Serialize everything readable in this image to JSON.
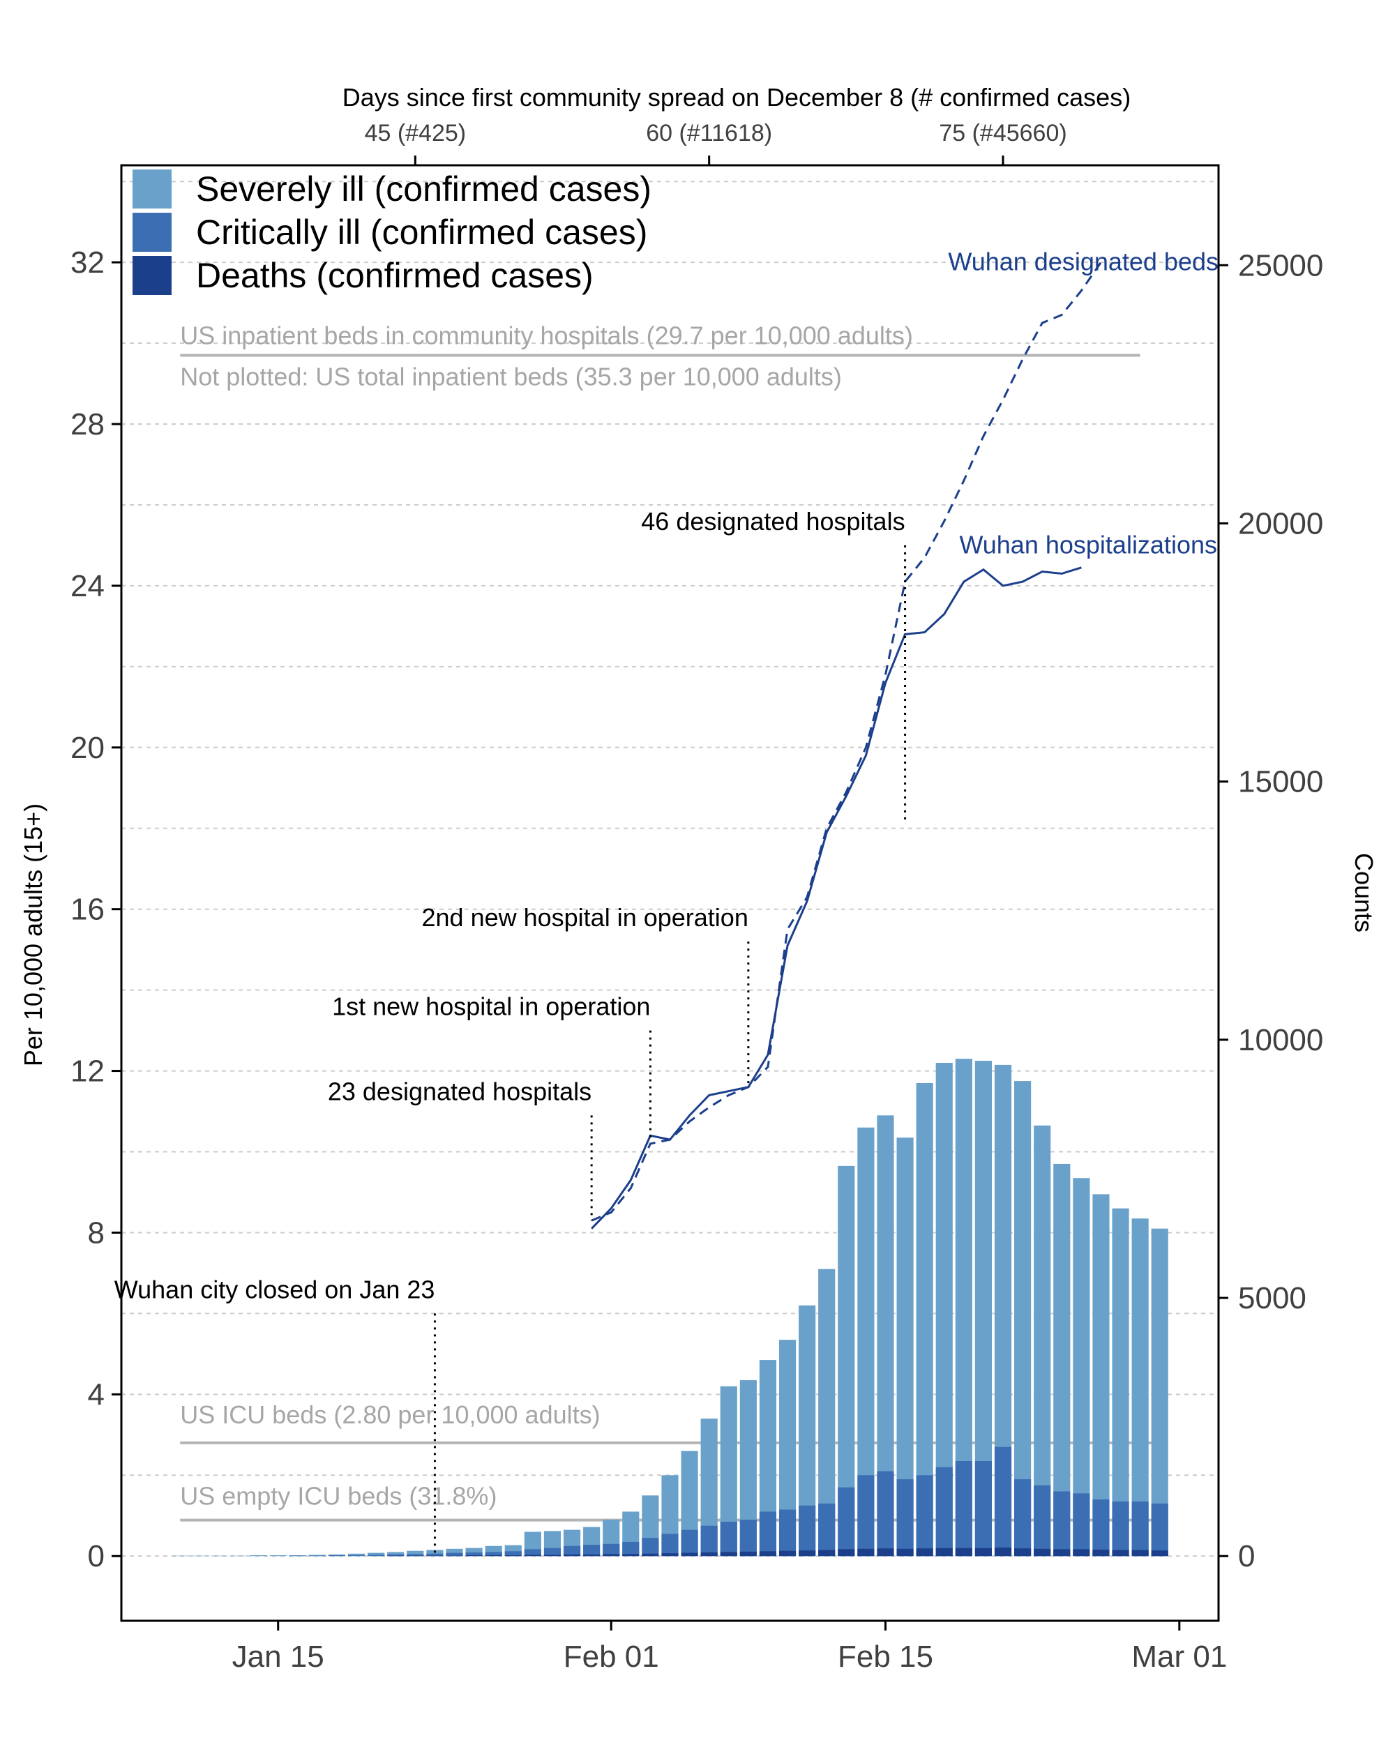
{
  "chart_data": {
    "type": "bar+line",
    "top_axis": {
      "title": "Days since first community spread on December 8 (# confirmed cases)",
      "ticks": [
        {
          "x": "Jan 22",
          "label": "45 (#425)"
        },
        {
          "x": "Feb 06",
          "label": "60 (#11618)"
        },
        {
          "x": "Feb 21",
          "label": "75 (#45660)"
        }
      ]
    },
    "x_axis": {
      "ticks": [
        {
          "x": "Jan 15",
          "label": "Jan 15"
        },
        {
          "x": "Feb 01",
          "label": "Feb 01"
        },
        {
          "x": "Feb 15",
          "label": "Feb 15"
        },
        {
          "x": "Mar 01",
          "label": "Mar 01"
        }
      ],
      "range": [
        "Jan 07",
        "Mar 03"
      ]
    },
    "y_left": {
      "title": "Per 10,000 adults (15+)",
      "ticks": [
        0,
        4,
        8,
        12,
        16,
        20,
        24,
        28,
        32
      ],
      "labels": [
        "0",
        "4",
        "8",
        "12",
        "16",
        "20",
        "24",
        "28",
        "32"
      ],
      "range": [
        -1.6,
        34.4
      ]
    },
    "y_right": {
      "title": "Counts",
      "ticks": [
        0,
        5000,
        10000,
        15000,
        20000,
        25000
      ],
      "labels": [
        "0",
        "5000",
        "10000",
        "15000",
        "20000",
        "25000"
      ],
      "counts_per_unit": 783
    },
    "legend": [
      {
        "label": "Severely ill (confirmed cases)",
        "color": "#6aa1cb"
      },
      {
        "label": "Critically ill (confirmed cases)",
        "color": "#3c6eb4"
      },
      {
        "label": "Deaths (confirmed cases)",
        "color": "#1c3f8c"
      }
    ],
    "bars": {
      "dates": [
        "Jan 10",
        "Jan 11",
        "Jan 12",
        "Jan 13",
        "Jan 14",
        "Jan 15",
        "Jan 16",
        "Jan 17",
        "Jan 18",
        "Jan 19",
        "Jan 20",
        "Jan 21",
        "Jan 22",
        "Jan 23",
        "Jan 24",
        "Jan 25",
        "Jan 26",
        "Jan 27",
        "Jan 28",
        "Jan 29",
        "Jan 30",
        "Jan 31",
        "Feb 01",
        "Feb 02",
        "Feb 03",
        "Feb 04",
        "Feb 05",
        "Feb 06",
        "Feb 07",
        "Feb 08",
        "Feb 09",
        "Feb 10",
        "Feb 11",
        "Feb 12",
        "Feb 13",
        "Feb 14",
        "Feb 15",
        "Feb 16",
        "Feb 17",
        "Feb 18",
        "Feb 19",
        "Feb 20",
        "Feb 21",
        "Feb 22",
        "Feb 23",
        "Feb 24",
        "Feb 25",
        "Feb 26",
        "Feb 27",
        "Feb 28",
        "Feb 29"
      ],
      "severe": [
        0.01,
        0.01,
        0.01,
        0.01,
        0.02,
        0.02,
        0.02,
        0.03,
        0.04,
        0.06,
        0.08,
        0.1,
        0.13,
        0.15,
        0.18,
        0.2,
        0.25,
        0.27,
        0.6,
        0.62,
        0.65,
        0.72,
        0.9,
        1.1,
        1.5,
        2.0,
        2.6,
        3.4,
        4.2,
        4.35,
        4.85,
        5.35,
        6.2,
        7.1,
        9.65,
        10.6,
        10.9,
        10.35,
        11.7,
        12.2,
        12.3,
        12.25,
        12.15,
        11.75,
        10.65,
        9.7,
        9.35,
        8.95,
        8.6,
        8.35,
        8.1
      ],
      "critical": [
        0.0,
        0.0,
        0.0,
        0.0,
        0.0,
        0.0,
        0.01,
        0.01,
        0.02,
        0.02,
        0.03,
        0.04,
        0.05,
        0.06,
        0.08,
        0.09,
        0.1,
        0.12,
        0.17,
        0.2,
        0.25,
        0.28,
        0.3,
        0.35,
        0.45,
        0.55,
        0.65,
        0.75,
        0.85,
        0.9,
        1.1,
        1.15,
        1.25,
        1.3,
        1.7,
        2.0,
        2.1,
        1.9,
        2.0,
        2.2,
        2.35,
        2.35,
        2.7,
        1.9,
        1.75,
        1.6,
        1.55,
        1.4,
        1.35,
        1.35,
        1.3
      ],
      "deaths": [
        0.0,
        0.0,
        0.0,
        0.0,
        0.0,
        0.0,
        0.0,
        0.0,
        0.0,
        0.0,
        0.0,
        0.01,
        0.01,
        0.01,
        0.01,
        0.02,
        0.02,
        0.02,
        0.03,
        0.03,
        0.04,
        0.04,
        0.05,
        0.05,
        0.06,
        0.07,
        0.08,
        0.09,
        0.1,
        0.11,
        0.12,
        0.13,
        0.14,
        0.15,
        0.17,
        0.18,
        0.19,
        0.18,
        0.19,
        0.2,
        0.2,
        0.2,
        0.21,
        0.19,
        0.18,
        0.17,
        0.17,
        0.16,
        0.15,
        0.15,
        0.14
      ]
    },
    "lines": [
      {
        "name": "Wuhan hospitalizations",
        "style": "solid",
        "color": "#1c3f8c",
        "dates": [
          "Jan 31",
          "Feb 01",
          "Feb 02",
          "Feb 03",
          "Feb 04",
          "Feb 05",
          "Feb 06",
          "Feb 07",
          "Feb 08",
          "Feb 09",
          "Feb 10",
          "Feb 11",
          "Feb 12",
          "Feb 13",
          "Feb 14",
          "Feb 15",
          "Feb 16",
          "Feb 17",
          "Feb 18",
          "Feb 19",
          "Feb 20",
          "Feb 21",
          "Feb 22",
          "Feb 23",
          "Feb 24",
          "Feb 25",
          "Feb 26"
        ],
        "values": [
          8.1,
          8.6,
          9.3,
          10.4,
          10.3,
          10.9,
          11.4,
          11.5,
          11.6,
          12.4,
          15.1,
          16.2,
          17.9,
          18.8,
          19.8,
          21.6,
          22.8,
          22.85,
          23.3,
          24.1,
          24.4,
          24.0,
          24.1,
          24.35,
          24.3,
          24.45,
          null
        ]
      },
      {
        "name": "Wuhan designated beds",
        "style": "dashed",
        "color": "#1c3f8c",
        "dates": [
          "Jan 31",
          "Feb 01",
          "Feb 02",
          "Feb 03",
          "Feb 04",
          "Feb 05",
          "Feb 06",
          "Feb 07",
          "Feb 08",
          "Feb 09",
          "Feb 10",
          "Feb 11",
          "Feb 12",
          "Feb 13",
          "Feb 14",
          "Feb 15",
          "Feb 16",
          "Feb 17",
          "Feb 18",
          "Feb 19",
          "Feb 20",
          "Feb 21",
          "Feb 22",
          "Feb 23",
          "Feb 24",
          "Feb 25",
          "Feb 26"
        ],
        "values": [
          8.3,
          8.5,
          9.1,
          10.2,
          10.3,
          10.75,
          11.1,
          11.4,
          11.6,
          12.1,
          15.5,
          16.3,
          18.0,
          18.9,
          20.0,
          21.8,
          24.1,
          24.7,
          25.6,
          26.6,
          27.7,
          28.6,
          29.6,
          30.5,
          30.7,
          31.3,
          32.0
        ]
      }
    ],
    "reference_lines": [
      {
        "name": "us-community-beds",
        "label": "US inpatient beds in community hospitals (29.7 per 10,000 adults)",
        "value": 29.7,
        "color": "#b4b4b4"
      },
      {
        "name": "us-icu-beds",
        "label": "US ICU beds (2.80 per 10,000 adults)",
        "value": 2.8,
        "color": "#b4b4b4"
      },
      {
        "name": "us-empty-icu-beds",
        "label": "US empty ICU beds (31.8%)",
        "value": 0.89,
        "color": "#b4b4b4"
      }
    ],
    "notes": [
      {
        "label": "Not plotted: US total inpatient beds (35.3 per 10,000 adults)"
      }
    ],
    "annotations": [
      {
        "label": "46 designated hospitals",
        "date": "Feb 16",
        "from": 25.0,
        "to": 18.2
      },
      {
        "label": "2nd new hospital in operation",
        "date": "Feb 08",
        "from": 15.2,
        "to": 11.6
      },
      {
        "label": "1st new hospital in operation",
        "date": "Feb 03",
        "from": 13.0,
        "to": 10.3
      },
      {
        "label": "23 designated hospitals",
        "date": "Jan 31",
        "from": 10.9,
        "to": 8.3
      },
      {
        "label": "Wuhan city closed on Jan 23",
        "date": "Jan 23",
        "from": 6.0,
        "to": 0.0
      }
    ]
  }
}
